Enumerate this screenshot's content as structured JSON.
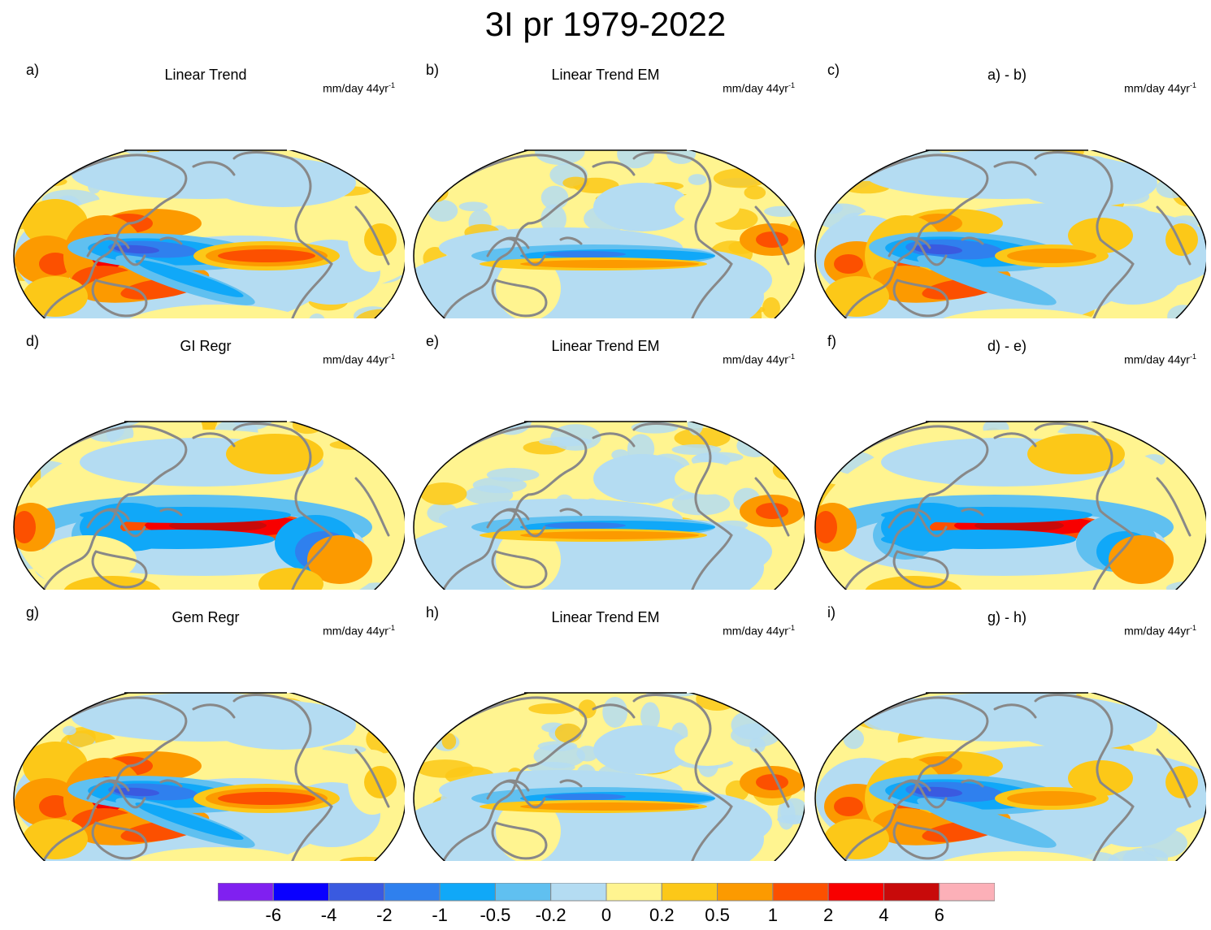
{
  "figure_title": "3I pr 1979-2022",
  "panels": [
    {
      "letter": "a)",
      "title": "Linear Trend",
      "units": "mm/day 44yr",
      "units_sup": "-1",
      "pattern": "trend"
    },
    {
      "letter": "b)",
      "title": "Linear Trend EM",
      "units": "mm/day 44yr",
      "units_sup": "-1",
      "pattern": "em"
    },
    {
      "letter": "c)",
      "title": "a) - b)",
      "units": "mm/day 44yr",
      "units_sup": "-1",
      "pattern": "trend_diff"
    },
    {
      "letter": "d)",
      "title": "GI Regr",
      "units": "mm/day 44yr",
      "units_sup": "-1",
      "pattern": "gi"
    },
    {
      "letter": "e)",
      "title": "Linear Trend EM",
      "units": "mm/day 44yr",
      "units_sup": "-1",
      "pattern": "em"
    },
    {
      "letter": "f)",
      "title": "d) - e)",
      "units": "mm/day 44yr",
      "units_sup": "-1",
      "pattern": "gi_diff"
    },
    {
      "letter": "g)",
      "title": "Gem Regr",
      "units": "mm/day 44yr",
      "units_sup": "-1",
      "pattern": "trend"
    },
    {
      "letter": "h)",
      "title": "Linear Trend EM",
      "units": "mm/day 44yr",
      "units_sup": "-1",
      "pattern": "em"
    },
    {
      "letter": "i)",
      "title": "g) - h)",
      "units": "mm/day 44yr",
      "units_sup": "-1",
      "pattern": "trend_diff"
    }
  ],
  "colorbar": {
    "colors": [
      "#8020f0",
      "#0a00ff",
      "#3a5ae0",
      "#2f80ee",
      "#10a8f8",
      "#60c0f0",
      "#b4dcf2",
      "#fff490",
      "#fcc818",
      "#fc9a00",
      "#fc5000",
      "#f80000",
      "#c80a0a",
      "#fcb0b8"
    ],
    "labels": [
      "-6",
      "-4",
      "-2",
      "-1",
      "-0.5",
      "-0.2",
      "0",
      "0.2",
      "0.5",
      "1",
      "2",
      "4",
      "6"
    ]
  },
  "map_colors": {
    "coast": "#888888",
    "outline": "#000000"
  }
}
